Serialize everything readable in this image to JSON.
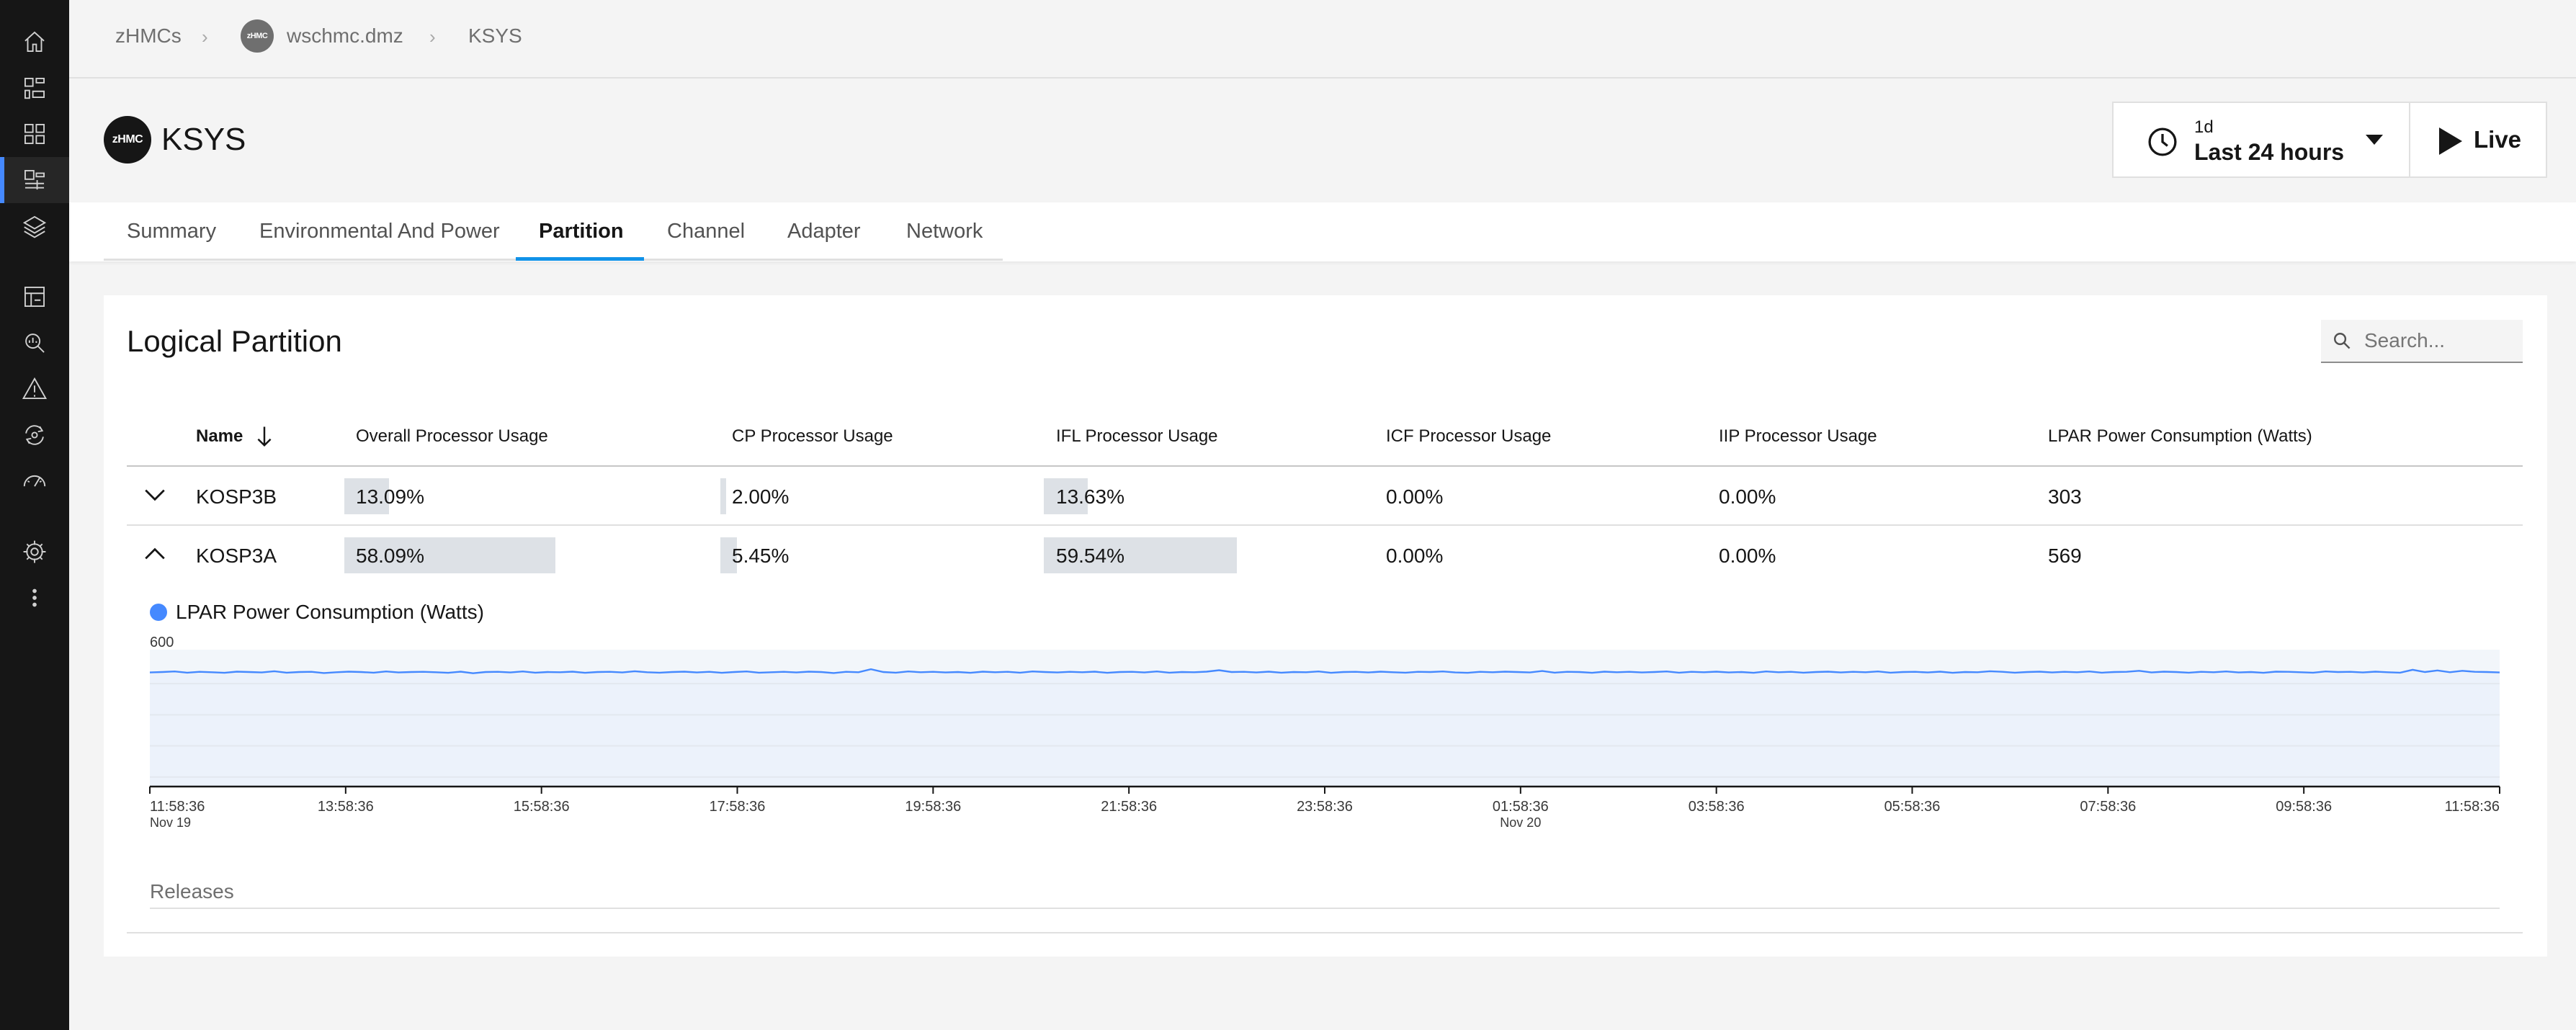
{
  "breadcrumb": {
    "items": [
      "zHMCs",
      "wschmc.dmz",
      "KSYS"
    ],
    "avatar_text": "zHMC"
  },
  "header": {
    "logo_text": "zHMC",
    "title": "KSYS",
    "time_range": {
      "short": "1d",
      "label": "Last 24 hours"
    },
    "live_label": "Live"
  },
  "tabs": [
    {
      "label": "Summary"
    },
    {
      "label": "Environmental And Power"
    },
    {
      "label": "Partition",
      "active": true
    },
    {
      "label": "Channel"
    },
    {
      "label": "Adapter"
    },
    {
      "label": "Network"
    }
  ],
  "section": {
    "title": "Logical Partition",
    "search_placeholder": "Search..."
  },
  "table": {
    "headers": [
      "Name",
      "Overall Processor Usage",
      "CP Processor Usage",
      "IFL Processor Usage",
      "ICF Processor Usage",
      "IIP Processor Usage",
      "LPAR Power Consumption (Watts)"
    ],
    "rows": [
      {
        "name": "KOSP3B",
        "expanded": false,
        "overall": "13.09%",
        "cp": "2.00%",
        "ifl": "13.63%",
        "icf": "0.00%",
        "iip": "0.00%",
        "power": "303"
      },
      {
        "name": "KOSP3A",
        "expanded": true,
        "overall": "58.09%",
        "cp": "5.45%",
        "ifl": "59.54%",
        "icf": "0.00%",
        "iip": "0.00%",
        "power": "569"
      }
    ],
    "bar_fractions": [
      {
        "overall": 0.1309,
        "cp": 0.02,
        "ifl": 0.1363
      },
      {
        "overall": 0.5809,
        "cp": 0.0545,
        "ifl": 0.5954
      }
    ]
  },
  "chart_data": {
    "type": "line",
    "legend": "LPAR Power Consumption (Watts)",
    "y_tick_label": "600",
    "ylim": [
      0,
      680
    ],
    "x_ticks": [
      "11:58:36",
      "13:58:36",
      "15:58:36",
      "17:58:36",
      "19:58:36",
      "21:58:36",
      "23:58:36",
      "01:58:36",
      "03:58:36",
      "05:58:36",
      "07:58:36",
      "09:58:36",
      "11:58:36"
    ],
    "x_tick_dates": [
      "Nov 19",
      "",
      "",
      "",
      "",
      "",
      "",
      "Nov 20",
      "",
      "",
      "",
      "",
      ""
    ],
    "series": [
      {
        "name": "LPAR Power Consumption (Watts)",
        "color": "#4589ff",
        "values": [
          567,
          569,
          572,
          566,
          570,
          568,
          565,
          571,
          569,
          567,
          573,
          566,
          569,
          570,
          564,
          568,
          571,
          569,
          566,
          572,
          567,
          569,
          570,
          568,
          565,
          571,
          563,
          569,
          570,
          567,
          572,
          566,
          569,
          568,
          571,
          565,
          569,
          570,
          567,
          573,
          568,
          566,
          569,
          571,
          567,
          570,
          565,
          569,
          572,
          566,
          568,
          570,
          567,
          571,
          569,
          564,
          570,
          568,
          583,
          569,
          566,
          572,
          568,
          570,
          567,
          569,
          565,
          571,
          568,
          570,
          566,
          572,
          569,
          567,
          570,
          568,
          571,
          565,
          569,
          570,
          567,
          572,
          566,
          569,
          568,
          571,
          578,
          569,
          570,
          567,
          571,
          566,
          569,
          568,
          572,
          565,
          569,
          570,
          567,
          571,
          568,
          566,
          570,
          569,
          572,
          567,
          565,
          570,
          568,
          571,
          569,
          567,
          574,
          566,
          570,
          569,
          565,
          571,
          568,
          570,
          567,
          569,
          572,
          566,
          570,
          568,
          571,
          567,
          569,
          565,
          572,
          568,
          570,
          566,
          569,
          571,
          567,
          570,
          568,
          572,
          566,
          569,
          570,
          567,
          571,
          565,
          569,
          568,
          573,
          570,
          566,
          569,
          571,
          567,
          570,
          568,
          572,
          566,
          569,
          570,
          575,
          567,
          571,
          569,
          566,
          570,
          568,
          572,
          567,
          569,
          565,
          571,
          570,
          568,
          566,
          572,
          569,
          570,
          567,
          571,
          568,
          566,
          580,
          569,
          577,
          568,
          575,
          570,
          569,
          567
        ]
      }
    ],
    "annotation_row": "Releases"
  }
}
